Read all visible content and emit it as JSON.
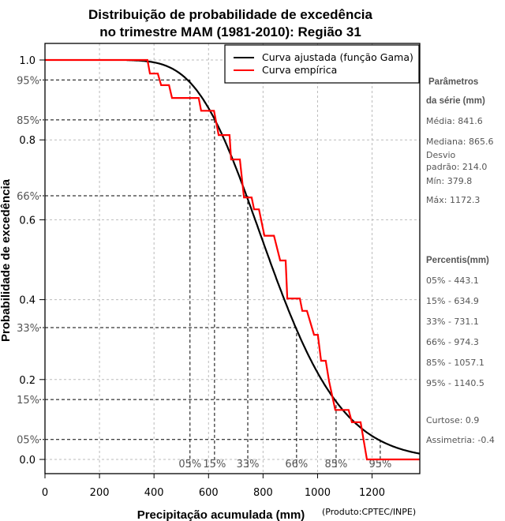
{
  "chart_data": {
    "type": "line",
    "title": [
      "Distribuição de probabilidade de excedência",
      "no trimestre MAM (1981-2010): Região 31"
    ],
    "xlabel": "Precipitação acumulada (mm)",
    "ylabel": "Probabilidade de excedência",
    "xlim": [
      0,
      1375
    ],
    "ylim": [
      0,
      1
    ],
    "x_ticks": [
      0,
      200,
      400,
      600,
      800,
      1000,
      1200
    ],
    "y_ticks": [
      {
        "value": 1.0,
        "label": "1.0"
      },
      {
        "value": 0.8,
        "label": "0.8"
      },
      {
        "value": 0.6,
        "label": "0.6"
      },
      {
        "value": 0.4,
        "label": "0.4"
      },
      {
        "value": 0.2,
        "label": "0.2"
      },
      {
        "value": 0.0,
        "label": "0.0"
      }
    ],
    "grid": true,
    "legend": {
      "position": "top-right",
      "entries": [
        {
          "label": "Curva ajustada (função Gama)",
          "color": "#000000"
        },
        {
          "label": "Curva empírica",
          "color": "#ff0000"
        }
      ]
    },
    "gamma_fit": {
      "mean": 841.6,
      "sd": 214.0
    },
    "series": [
      {
        "name": "Curva ajustada (função Gama)",
        "color": "#000000",
        "x_start": 300
      },
      {
        "name": "Curva empírica",
        "color": "#ff0000",
        "points": [
          [
            0,
            1.0
          ],
          [
            376,
            1.0
          ],
          [
            385,
            0.966
          ],
          [
            414,
            0.966
          ],
          [
            426,
            0.937
          ],
          [
            455,
            0.937
          ],
          [
            466,
            0.905
          ],
          [
            564,
            0.905
          ],
          [
            573,
            0.873
          ],
          [
            620,
            0.873
          ],
          [
            637,
            0.812
          ],
          [
            677,
            0.812
          ],
          [
            683,
            0.751
          ],
          [
            715,
            0.751
          ],
          [
            730,
            0.656
          ],
          [
            758,
            0.656
          ],
          [
            767,
            0.626
          ],
          [
            785,
            0.626
          ],
          [
            805,
            0.56
          ],
          [
            840,
            0.56
          ],
          [
            863,
            0.498
          ],
          [
            883,
            0.498
          ],
          [
            889,
            0.403
          ],
          [
            935,
            0.403
          ],
          [
            944,
            0.372
          ],
          [
            961,
            0.372
          ],
          [
            987,
            0.312
          ],
          [
            1001,
            0.312
          ],
          [
            1013,
            0.247
          ],
          [
            1030,
            0.247
          ],
          [
            1042,
            0.196
          ],
          [
            1065,
            0.124
          ],
          [
            1114,
            0.124
          ],
          [
            1126,
            0.093
          ],
          [
            1158,
            0.093
          ],
          [
            1181,
            0.0
          ],
          [
            1375,
            0.0
          ]
        ]
      }
    ],
    "percentile_lines": [
      {
        "label": "95%",
        "prob": 0.95,
        "x": 532,
        "bottom_label": "05%"
      },
      {
        "label": "85%",
        "prob": 0.85,
        "x": 622,
        "bottom_label": "15%"
      },
      {
        "label": "66%",
        "prob": 0.66,
        "x": 744,
        "bottom_label": "33%"
      },
      {
        "label": "33%",
        "prob": 0.33,
        "x": 923,
        "bottom_label": "66%"
      },
      {
        "label": "15%",
        "prob": 0.15,
        "x": 1068,
        "bottom_label": "85%"
      },
      {
        "label": "05%",
        "prob": 0.05,
        "x": 1230,
        "bottom_label": "95%"
      }
    ]
  },
  "sidebar": {
    "params_heading": [
      "Parâmetros",
      "da série (mm)"
    ],
    "params": [
      "Média: 841.6",
      "Mediana: 865.6",
      "Desvio",
      "padrão: 214.0",
      "Mín: 379.8",
      "Máx: 1172.3"
    ],
    "percentis_heading": "Percentis(mm)",
    "percentis": [
      "05% - 443.1",
      "15% - 634.9",
      "33% - 731.1",
      "66% - 974.3",
      "85% - 1057.1",
      "95% - 1140.5"
    ],
    "extra": [
      "Curtose: 0.9",
      "Assimetria: -0.4"
    ]
  },
  "credit": "(Produto:CPTEC/INPE)"
}
